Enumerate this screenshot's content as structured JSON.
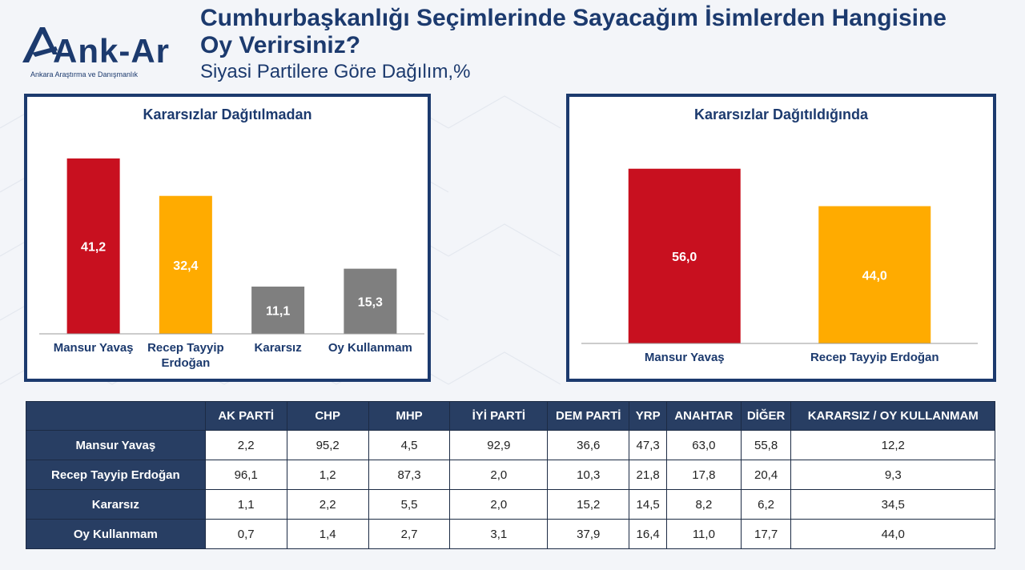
{
  "logo": {
    "name": "Ank-Ar",
    "tagline": "Ankara Araştırma ve Danışmanlık"
  },
  "header": {
    "title": "Cumhurbaşkanlığı Seçimlerinde Sayacağım İsimlerden Hangisine Oy Verirsiniz?",
    "subtitle": "Siyasi Partilere Göre Dağılım,%"
  },
  "colors": {
    "navy": "#1c3a6e",
    "red": "#c8101f",
    "orange": "#ffab00",
    "gray": "#7f7f7f"
  },
  "chart_data": [
    {
      "type": "bar",
      "title": "Kararsızlar Dağıtılmadan",
      "categories": [
        "Mansur Yavaş",
        "Recep Tayyip Erdoğan",
        "Kararsız",
        "Oy Kullanmam"
      ],
      "values": [
        41.2,
        32.4,
        11.1,
        15.3
      ],
      "value_labels": [
        "41,2",
        "32,4",
        "11,1",
        "15,3"
      ],
      "bar_colors": [
        "#c8101f",
        "#ffab00",
        "#7f7f7f",
        "#7f7f7f"
      ],
      "ylim": [
        0,
        42.5
      ]
    },
    {
      "type": "bar",
      "title": "Kararsızlar Dağıtıldığında",
      "categories": [
        "Mansur Yavaş",
        "Recep Tayyip Erdoğan"
      ],
      "values": [
        56.0,
        44.0
      ],
      "value_labels": [
        "56,0",
        "44,0"
      ],
      "bar_colors": [
        "#c8101f",
        "#ffab00"
      ],
      "ylim": [
        0,
        58.5
      ]
    },
    {
      "type": "table",
      "columns": [
        "",
        "AK PARTİ",
        "CHP",
        "MHP",
        "İYİ PARTİ",
        "DEM PARTİ",
        "YRP",
        "ANAHTAR",
        "DİĞER",
        "KARARSIZ / OY KULLANMAM"
      ],
      "rows": [
        {
          "label": "Mansur Yavaş",
          "cells": [
            "2,2",
            "95,2",
            "4,5",
            "92,9",
            "36,6",
            "47,3",
            "63,0",
            "55,8",
            "12,2"
          ]
        },
        {
          "label": "Recep Tayyip Erdoğan",
          "cells": [
            "96,1",
            "1,2",
            "87,3",
            "2,0",
            "10,3",
            "21,8",
            "17,8",
            "20,4",
            "9,3"
          ]
        },
        {
          "label": "Kararsız",
          "cells": [
            "1,1",
            "2,2",
            "5,5",
            "2,0",
            "15,2",
            "14,5",
            "8,2",
            "6,2",
            "34,5"
          ]
        },
        {
          "label": "Oy Kullanmam",
          "cells": [
            "0,7",
            "1,4",
            "2,7",
            "3,1",
            "37,9",
            "16,4",
            "11,0",
            "17,7",
            "44,0"
          ]
        }
      ]
    }
  ]
}
